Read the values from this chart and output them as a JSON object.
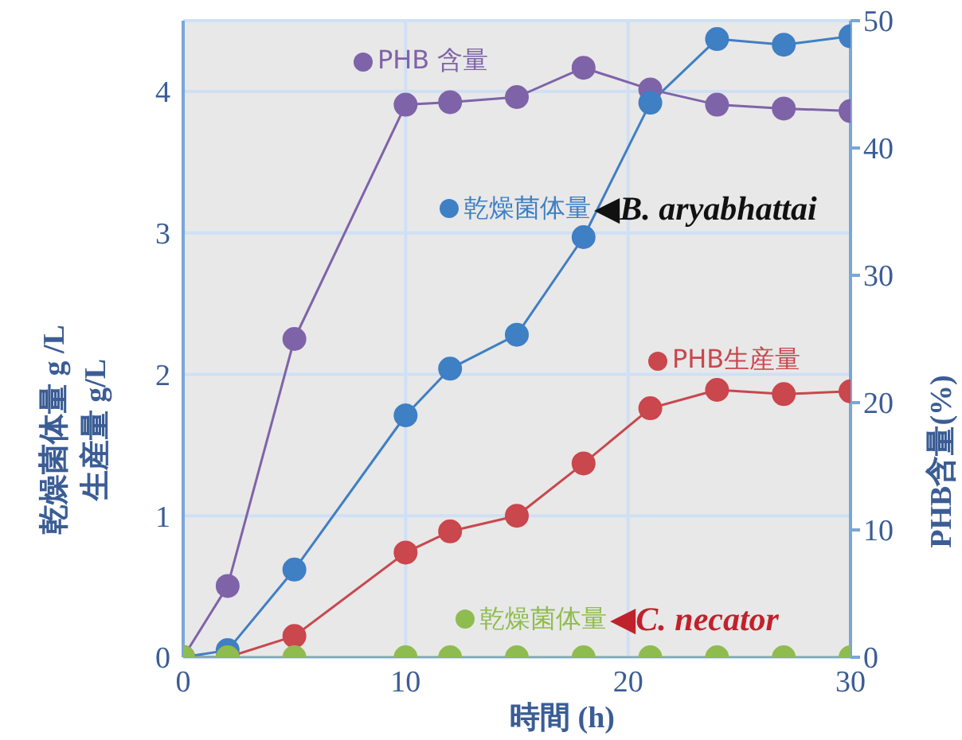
{
  "chart_data": {
    "type": "line",
    "xlabel": "時間 (h)",
    "ylabel": "乾燥菌体量 g /L\n生産量 g/L",
    "y2label": "PHB含量(%)",
    "x": [
      0,
      2,
      5,
      10,
      12,
      15,
      18,
      21,
      24,
      27,
      30
    ],
    "series": [
      {
        "name": "PHB 含量",
        "color": "#7f63a8",
        "axis": "y2",
        "values": [
          0,
          5.6,
          25,
          43.4,
          43.6,
          44,
          46.3,
          44.6,
          43.4,
          43.1,
          42.9
        ]
      },
      {
        "name": "乾燥菌体量",
        "color": "#3f7fc4",
        "values": [
          0,
          0.05,
          0.62,
          1.71,
          2.04,
          2.28,
          2.97,
          3.92,
          4.37,
          4.33,
          4.39
        ]
      },
      {
        "name": "PHB生産量",
        "color": "#c9474d",
        "values": [
          0,
          0,
          0.15,
          0.74,
          0.89,
          1.0,
          1.37,
          1.76,
          1.89,
          1.86,
          1.88
        ]
      },
      {
        "name": "乾燥菌体量",
        "color": "#8fbc4f",
        "values": [
          0,
          0,
          0,
          0,
          0,
          0,
          0,
          0,
          0,
          0,
          0
        ]
      }
    ],
    "annotations": [
      "◀B. aryabhattai",
      "◀C. necator"
    ],
    "xlim": [
      0,
      30
    ],
    "xticks": [
      0,
      10,
      20,
      30
    ],
    "ylim": [
      0,
      4.5
    ],
    "yticks": [
      0,
      1,
      2,
      3,
      4
    ],
    "y2lim": [
      0,
      50
    ],
    "y2ticks": [
      0,
      10,
      20,
      30,
      40,
      50
    ],
    "grid": true,
    "legend": "bottom right",
    "marker": "circle",
    "line_style": "solid"
  }
}
